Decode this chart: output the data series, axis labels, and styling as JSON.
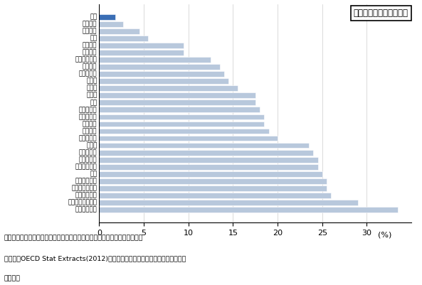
{
  "countries": [
    "日本",
    "ベルギー",
    "フランス",
    "コダ",
    "メキシコ",
    "オランダ",
    "アイルランド",
    "イギリス",
    "ポーランド",
    "ドイツ",
    "トルコ",
    "チェコ",
    "韓国",
    "スロバキア",
    "ポルトガル",
    "スペイン",
    "イギリス",
    "ハンガリー",
    "スイス",
    "デンマーク",
    "ノルウェー",
    "オーストリア",
    "米国",
    "フィンランド",
    "オーストラリア",
    "スウェーデン",
    "ニュージーランド",
    "アイスランド"
  ],
  "values": [
    1.8,
    2.7,
    4.5,
    5.5,
    9.5,
    9.5,
    12.5,
    13.5,
    14.0,
    14.5,
    15.5,
    17.5,
    17.5,
    18.0,
    18.5,
    18.5,
    19.0,
    20.0,
    23.5,
    24.0,
    24.5,
    24.5,
    25.0,
    25.5,
    25.5,
    26.0,
    29.0,
    33.5
  ],
  "bar_color_default": "#b8c8dc",
  "bar_color_japan": "#3a6eb5",
  "xlabel_percent": "(%)",
  "xlim": [
    0,
    35
  ],
  "xticks": [
    0,
    5,
    10,
    15,
    20,
    25,
    30
  ],
  "legend_text": "【大学型高等教育機関】",
  "note_line1": "（資料）文部科学省資料「社会人の学び直しに関する現状等について」　元",
  "note_line2": "データはOECD Stat Extracts(2012)、「学校教育調査」および文部科学省調査",
  "note_line3": "による。",
  "figsize": [
    5.93,
    4.01
  ],
  "dpi": 100
}
